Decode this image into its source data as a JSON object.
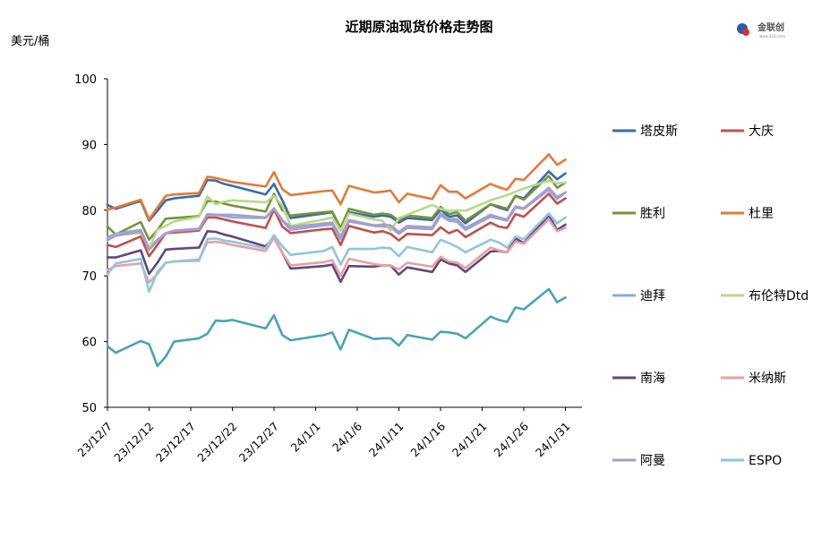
{
  "chart_data": {
    "type": "line",
    "title": "近期原油现货价格走势图",
    "ylabel": "美元/桶",
    "xlabel": "",
    "ylim": [
      50,
      100
    ],
    "yticks": [
      50,
      60,
      70,
      80,
      90,
      100
    ],
    "xticks": [
      "23/12/7",
      "23/12/12",
      "23/12/17",
      "23/12/22",
      "23/12/27",
      "24/1/1",
      "24/1/6",
      "24/1/11",
      "24/1/16",
      "24/1/21",
      "24/1/26",
      "24/1/31"
    ],
    "x": [
      "23/12/7",
      "23/12/8",
      "23/12/11",
      "23/12/12",
      "23/12/13",
      "23/12/14",
      "23/12/15",
      "23/12/18",
      "23/12/19",
      "23/12/20",
      "23/12/21",
      "23/12/22",
      "23/12/26",
      "23/12/27",
      "23/12/28",
      "23/12/29",
      "24/1/2",
      "24/1/3",
      "24/1/4",
      "24/1/5",
      "24/1/8",
      "24/1/9",
      "24/1/10",
      "24/1/11",
      "24/1/12",
      "24/1/15",
      "24/1/16",
      "24/1/17",
      "24/1/18",
      "24/1/19",
      "24/1/22",
      "24/1/23",
      "24/1/24",
      "24/1/25",
      "24/1/26",
      "24/1/29",
      "24/1/30",
      "24/1/31"
    ],
    "grid": false,
    "legend": "right",
    "series": [
      {
        "name": "塔皮斯",
        "color": "#3b6aa8",
        "values": [
          80.8,
          80.2,
          81.4,
          78.4,
          79.9,
          81.5,
          81.8,
          82.2,
          84.6,
          84.5,
          84.0,
          83.7,
          82.4,
          84.0,
          81.5,
          78.8,
          79.5,
          79.7,
          77.0,
          79.7,
          79.0,
          79.2,
          79.0,
          78.1,
          78.8,
          78.5,
          80.1,
          79.0,
          79.2,
          78.0,
          80.9,
          80.4,
          80.0,
          82.2,
          81.8,
          85.9,
          84.7,
          85.6
        ]
      },
      {
        "name": "大庆",
        "color": "#c0504d",
        "values": [
          74.7,
          74.4,
          76.0,
          73.0,
          74.7,
          76.5,
          76.6,
          76.9,
          78.9,
          78.9,
          78.6,
          78.3,
          77.3,
          80.1,
          77.5,
          76.5,
          77.1,
          77.2,
          74.7,
          77.6,
          76.6,
          76.8,
          76.4,
          75.4,
          76.4,
          76.2,
          77.4,
          76.5,
          77.0,
          75.9,
          78.1,
          77.5,
          77.3,
          79.4,
          79.0,
          82.5,
          81.0,
          81.8
        ]
      },
      {
        "name": "胜利",
        "color": "#77933c",
        "values": [
          77.5,
          76.3,
          78.2,
          75.5,
          77.0,
          78.7,
          78.8,
          79.1,
          81.4,
          81.3,
          81.0,
          80.7,
          79.8,
          82.5,
          80.0,
          79.2,
          79.7,
          79.8,
          77.3,
          80.2,
          79.3,
          79.5,
          79.3,
          78.4,
          79.2,
          78.8,
          80.5,
          79.4,
          79.7,
          78.4,
          80.9,
          80.6,
          80.2,
          82.2,
          81.6,
          85.2,
          83.4,
          84.2
        ]
      },
      {
        "name": "杜里",
        "color": "#e07b39",
        "values": [
          80.1,
          80.4,
          81.6,
          78.6,
          80.4,
          82.2,
          82.4,
          82.6,
          85.1,
          84.9,
          84.6,
          84.3,
          83.6,
          85.8,
          83.2,
          82.3,
          82.9,
          83.0,
          80.9,
          83.7,
          82.7,
          82.8,
          83.0,
          81.2,
          82.5,
          81.7,
          83.8,
          82.8,
          82.8,
          81.8,
          84.0,
          83.5,
          83.1,
          84.8,
          84.6,
          88.5,
          86.9,
          87.7
        ]
      },
      {
        "name": "迪拜",
        "color": "#8eaad6",
        "values": [
          75.9,
          76.4,
          77.0,
          74.2,
          75.5,
          76.5,
          76.9,
          77.2,
          79.4,
          79.3,
          79.1,
          78.9,
          78.8,
          80.2,
          78.4,
          77.0,
          77.7,
          77.8,
          75.6,
          78.3,
          77.6,
          77.5,
          77.4,
          76.4,
          77.3,
          77.1,
          79.2,
          78.4,
          78.2,
          77.0,
          79.0,
          78.7,
          78.4,
          80.4,
          80.2,
          83.1,
          81.7,
          82.7
        ]
      },
      {
        "name": "布伦特Dtd",
        "color": "#b8d88b",
        "values": [
          75.4,
          76.2,
          76.5,
          74.2,
          77.0,
          77.6,
          78.3,
          79.0,
          82.1,
          80.9,
          81.3,
          81.5,
          81.2,
          82.2,
          80.7,
          77.6,
          78.6,
          78.9,
          76.9,
          79.5,
          78.6,
          78.4,
          76.9,
          78.8,
          79.3,
          80.8,
          80.2,
          79.9,
          80.0,
          79.9,
          81.5,
          81.9,
          82.3,
          82.8,
          83.3,
          84.5,
          84.1,
          84.2
        ]
      },
      {
        "name": "南海",
        "color": "#60487d",
        "values": [
          72.8,
          72.8,
          73.9,
          70.3,
          72.0,
          74.0,
          74.1,
          74.3,
          76.8,
          76.7,
          76.3,
          76.0,
          74.5,
          75.8,
          73.5,
          71.1,
          71.5,
          71.7,
          69.1,
          71.5,
          71.4,
          71.6,
          71.6,
          70.2,
          71.3,
          70.6,
          72.5,
          71.9,
          71.6,
          70.6,
          73.7,
          73.8,
          73.6,
          75.7,
          75.0,
          79.2,
          77.0,
          77.8
        ]
      },
      {
        "name": "米纳斯",
        "color": "#e6a1a0",
        "values": [
          70.9,
          71.5,
          71.9,
          69.0,
          70.3,
          72.0,
          72.2,
          72.5,
          75.1,
          75.2,
          75.0,
          74.7,
          73.8,
          75.8,
          73.5,
          71.6,
          72.1,
          72.4,
          70.0,
          72.6,
          71.8,
          71.6,
          71.6,
          71.0,
          72.0,
          71.4,
          72.9,
          72.2,
          72.0,
          71.2,
          74.3,
          73.9,
          73.6,
          75.2,
          74.9,
          78.6,
          76.8,
          77.3
        ]
      },
      {
        "name": "阿曼",
        "color": "#a89cca",
        "values": [
          75.5,
          76.1,
          76.8,
          74.0,
          75.3,
          76.5,
          76.8,
          77.1,
          79.3,
          79.3,
          79.3,
          79.3,
          78.9,
          80.3,
          78.5,
          77.4,
          78.0,
          78.1,
          76.0,
          78.5,
          77.7,
          77.8,
          77.7,
          76.7,
          77.6,
          77.4,
          79.5,
          78.7,
          78.6,
          77.3,
          79.3,
          78.9,
          78.6,
          80.6,
          80.3,
          83.4,
          82.0,
          82.7
        ]
      },
      {
        "name": "ESPO",
        "color": "#92c5dc",
        "values": [
          70.2,
          71.9,
          72.6,
          67.6,
          70.6,
          72.0,
          72.2,
          72.3,
          75.6,
          75.7,
          75.4,
          75.2,
          74.2,
          76.2,
          74.5,
          73.2,
          73.8,
          74.4,
          71.7,
          74.1,
          74.1,
          74.3,
          74.2,
          73.0,
          74.4,
          73.6,
          75.5,
          75.0,
          74.4,
          73.6,
          75.5,
          75.1,
          74.3,
          76.0,
          75.6,
          79.5,
          78.0,
          78.9
        ]
      },
      {
        "name": "",
        "color": "#4aa3b5",
        "values": [
          59.3,
          58.3,
          60.1,
          59.6,
          56.3,
          57.7,
          60.0,
          60.5,
          61.2,
          63.2,
          63.1,
          63.3,
          62.0,
          64.0,
          61.0,
          60.2,
          61.0,
          61.4,
          58.8,
          61.8,
          60.4,
          60.5,
          60.5,
          59.4,
          61.0,
          60.3,
          61.5,
          61.4,
          61.2,
          60.5,
          63.8,
          63.3,
          63.0,
          65.2,
          64.9,
          68.0,
          66.0,
          66.7
        ]
      }
    ]
  },
  "logo": {
    "text": "金联创",
    "sub": "www.315i.com"
  }
}
